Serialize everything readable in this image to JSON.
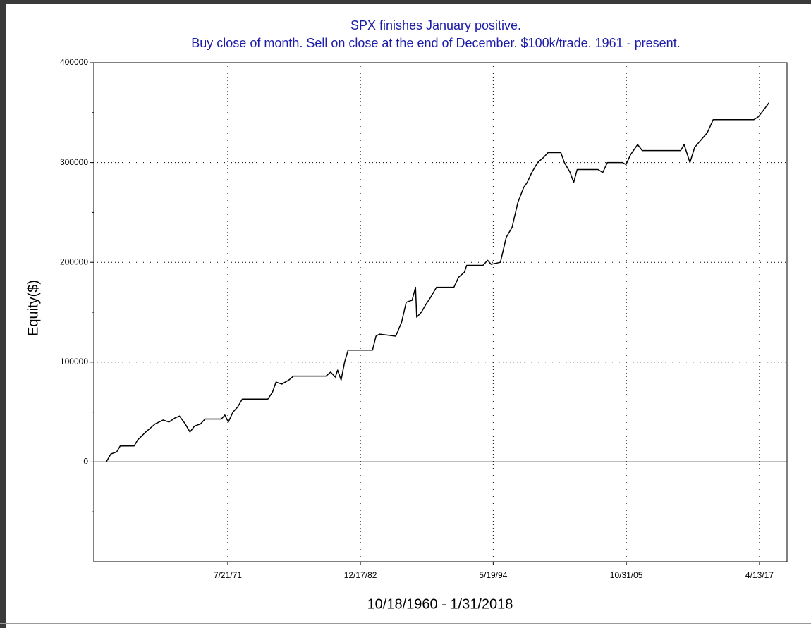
{
  "chart_data": {
    "type": "line",
    "title": "SPX finishes January positive.",
    "subtitle": "Buy close of month. Sell on close at the end of December. $100k/trade. 1961 - present.",
    "x_label": "10/18/1960 - 1/31/2018",
    "y_label": "Equity($)",
    "xlim": [
      1960.03,
      2019.65
    ],
    "xticks": [
      {
        "value": 1971.55,
        "label": "7/21/71"
      },
      {
        "value": 1982.96,
        "label": "12/17/82"
      },
      {
        "value": 1994.38,
        "label": "5/19/94"
      },
      {
        "value": 2005.83,
        "label": "10/31/05"
      },
      {
        "value": 2017.28,
        "label": "4/13/17"
      }
    ],
    "ylim": [
      -100000,
      400000
    ],
    "yticks": [
      0,
      100000,
      200000,
      300000,
      400000
    ],
    "yticks_minor": [
      -50000,
      50000,
      150000,
      250000,
      350000
    ],
    "grid": true,
    "series": [
      {
        "name": "Equity",
        "color": "#000000",
        "x": [
          1961.1,
          1961.5,
          1962.0,
          1962.3,
          1963.5,
          1963.8,
          1964.5,
          1965.3,
          1966.0,
          1966.5,
          1967.0,
          1967.4,
          1967.9,
          1968.3,
          1968.7,
          1969.2,
          1969.6,
          1970.0,
          1971.0,
          1971.3,
          1971.6,
          1972.0,
          1972.4,
          1972.8,
          1975.0,
          1975.4,
          1975.7,
          1976.2,
          1976.8,
          1977.2,
          1980.0,
          1980.4,
          1980.8,
          1981.0,
          1981.3,
          1981.6,
          1981.9,
          1984.0,
          1984.3,
          1984.6,
          1986.0,
          1986.5,
          1986.9,
          1987.4,
          1987.7,
          1987.8,
          1988.2,
          1988.6,
          1989.0,
          1989.5,
          1991.0,
          1991.4,
          1991.9,
          1992.1,
          1993.5,
          1993.9,
          1994.2,
          1995.0,
          1995.5,
          1996.0,
          1996.5,
          1997.0,
          1997.3,
          1997.7,
          1998.2,
          1998.7,
          1999.1,
          2000.2,
          2000.5,
          2001.0,
          2001.3,
          2001.6,
          2003.4,
          2003.8,
          2004.2,
          2005.5,
          2005.8,
          2006.2,
          2006.8,
          2007.2,
          2010.5,
          2010.8,
          2011.3,
          2011.7,
          2012.2,
          2012.8,
          2013.3,
          2016.8,
          2017.2,
          2017.6,
          2018.1
        ],
        "values": [
          0,
          8000,
          10000,
          16000,
          16000,
          22000,
          30000,
          38000,
          42000,
          40000,
          44000,
          46000,
          38000,
          30000,
          36000,
          38000,
          43000,
          43000,
          43000,
          47000,
          40000,
          50000,
          55000,
          63000,
          63000,
          70000,
          80000,
          78000,
          82000,
          86000,
          86000,
          90000,
          85000,
          92000,
          82000,
          100000,
          112000,
          112000,
          126000,
          128000,
          126000,
          140000,
          160000,
          162000,
          175000,
          145000,
          150000,
          158000,
          165000,
          175000,
          175000,
          185000,
          190000,
          197000,
          197000,
          202000,
          198000,
          200000,
          225000,
          235000,
          260000,
          275000,
          280000,
          290000,
          300000,
          305000,
          310000,
          310000,
          300000,
          290000,
          280000,
          293000,
          293000,
          290000,
          300000,
          300000,
          298000,
          308000,
          318000,
          312000,
          312000,
          318000,
          300000,
          315000,
          322000,
          330000,
          343000,
          343000,
          346000,
          352000,
          360000
        ]
      }
    ]
  }
}
